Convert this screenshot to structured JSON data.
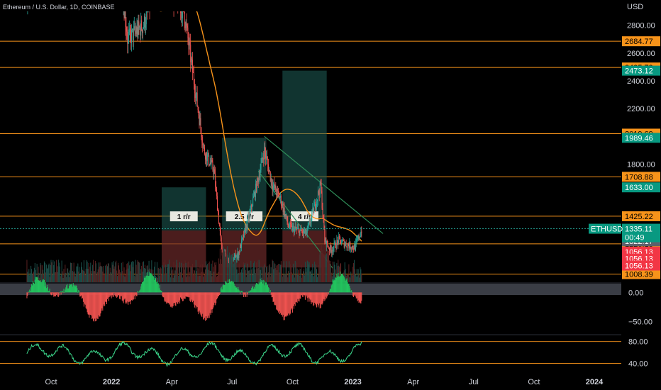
{
  "header": {
    "symbol_title": "Ethereum / U.S. Dollar, 1D, COINBASE",
    "currency": "USD"
  },
  "price_axis": {
    "ticks": [
      "2800.00",
      "2600.00",
      "2400.00",
      "2200.00",
      "1800.00"
    ],
    "tick_values": [
      2800,
      2600,
      2400,
      2200,
      1800
    ],
    "range": [
      950,
      2900
    ]
  },
  "horizontal_levels": [
    {
      "value": "2684.77",
      "price": 2684.77,
      "tag_color": "#f7931a",
      "text_color": "#000000"
    },
    {
      "value": "2495.79",
      "price": 2495.79,
      "tag_color": "#f7931a",
      "text_color": "#000000"
    },
    {
      "value": "2019.69",
      "price": 2019.69,
      "tag_color": "#f7931a",
      "text_color": "#000000"
    },
    {
      "value": "1708.88",
      "price": 1708.88,
      "tag_color": "#f7931a",
      "text_color": "#000000"
    },
    {
      "value": "1425.22",
      "price": 1425.22,
      "tag_color": "#f7931a",
      "text_color": "#000000"
    },
    {
      "value": "1226.13",
      "price": 1226.13,
      "tag_color": "#f7931a",
      "text_color": "#000000"
    },
    {
      "value": "1008.39",
      "price": 1008.39,
      "tag_color": "#f7931a",
      "text_color": "#000000"
    }
  ],
  "target_tags": [
    {
      "value": "2473.12",
      "price": 2473.12,
      "tag_color": "#089981"
    },
    {
      "value": "1989.46",
      "price": 1989.46,
      "tag_color": "#089981"
    },
    {
      "value": "1633.00",
      "price": 1633.0,
      "tag_color": "#089981"
    }
  ],
  "stop_tags": [
    {
      "value": "1322.17",
      "price": 1305,
      "tag_color": "#5d606b"
    },
    {
      "value": "1322.17",
      "price": 1265,
      "tag_color": "#5d606b"
    },
    {
      "value": "1322.17",
      "price": 1245,
      "tag_color": "#5d606b"
    },
    {
      "value": "1056.13",
      "price": 1170,
      "tag_color": "#f23645"
    },
    {
      "value": "1056.13",
      "price": 1120,
      "tag_color": "#f23645"
    },
    {
      "value": "1056.13",
      "price": 1070,
      "tag_color": "#f23645"
    }
  ],
  "current_price": {
    "symbol": "ETHUSD",
    "value": "1335.11",
    "countdown": "00:49",
    "price": 1335.11,
    "tag_color": "#089981"
  },
  "risk_reward_boxes": [
    {
      "label": "1 r/r",
      "target_price": 1633.0,
      "entry_price": 1322.17,
      "stop_price": 1056.13,
      "start_month": 2.5,
      "end_month": 4.7
    },
    {
      "label": "2.5 r/r",
      "target_price": 1989.46,
      "entry_price": 1322.17,
      "stop_price": 1056.13,
      "start_month": 5.5,
      "end_month": 7.7
    },
    {
      "label": "4 r/r",
      "target_price": 2473.12,
      "entry_price": 1322.17,
      "stop_price": 1056.13,
      "start_month": 8.5,
      "end_month": 10.7
    }
  ],
  "oscillator": {
    "ticks": [
      "0.00",
      "−50.00"
    ],
    "tick_values": [
      0,
      -50
    ],
    "range": [
      -70,
      15
    ]
  },
  "rsi": {
    "ticks": [
      "80.00",
      "40.00"
    ],
    "tick_values": [
      80,
      40
    ],
    "range": [
      25,
      90
    ]
  },
  "time_axis": {
    "labels": [
      "Oct",
      "2022",
      "Apr",
      "Jul",
      "Oct",
      "2023",
      "Apr",
      "Jul",
      "Oct",
      "2024"
    ],
    "months": [
      -3,
      0,
      3,
      6,
      9,
      12,
      15,
      18,
      21,
      24
    ]
  },
  "colors": {
    "background": "#000000",
    "up": "#26a69a",
    "down": "#ef5350",
    "ma": "#f7931a",
    "trendline": "#2e8b57",
    "rsi_line": "#3cd88c",
    "grid": "#1a1a1a"
  }
}
